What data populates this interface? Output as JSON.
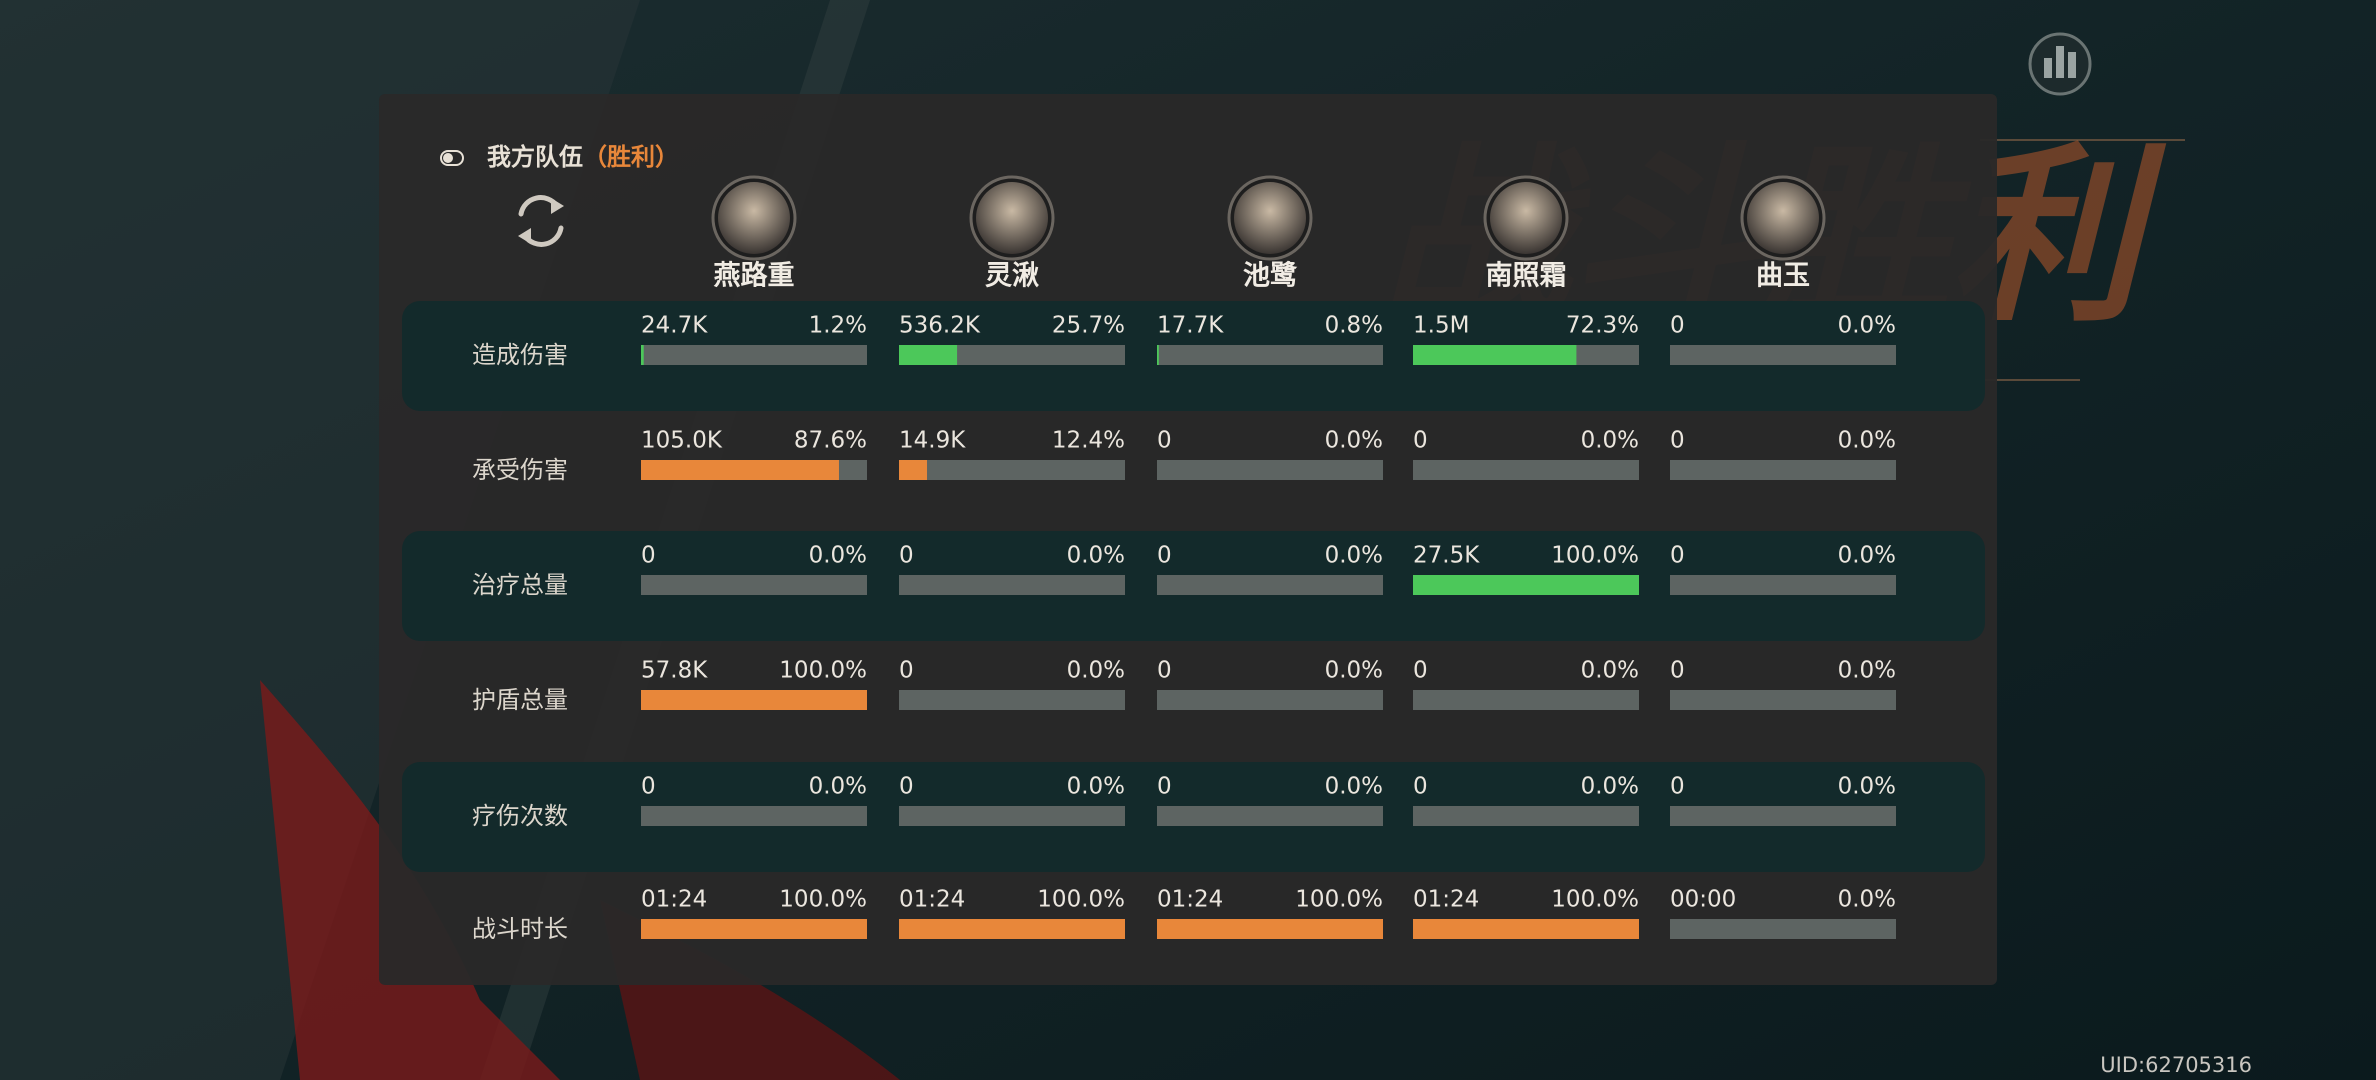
{
  "header": {
    "team": "我方队伍",
    "result": "（胜利）"
  },
  "background_title": "战斗胜利",
  "uid": "UID:62705316",
  "characters": [
    "燕路重",
    "灵湫",
    "池鹭",
    "南照霜",
    "曲玉"
  ],
  "rows": [
    {
      "label": "造成伤害",
      "color": "#4cc85a",
      "cells": [
        {
          "value": "24.7K",
          "percent": 1.2,
          "percent_label": "1.2%"
        },
        {
          "value": "536.2K",
          "percent": 25.7,
          "percent_label": "25.7%"
        },
        {
          "value": "17.7K",
          "percent": 0.8,
          "percent_label": "0.8%"
        },
        {
          "value": "1.5M",
          "percent": 72.3,
          "percent_label": "72.3%"
        },
        {
          "value": "0",
          "percent": 0,
          "percent_label": "0.0%"
        }
      ]
    },
    {
      "label": "承受伤害",
      "color": "#e8873a",
      "cells": [
        {
          "value": "105.0K",
          "percent": 87.6,
          "percent_label": "87.6%"
        },
        {
          "value": "14.9K",
          "percent": 12.4,
          "percent_label": "12.4%"
        },
        {
          "value": "0",
          "percent": 0,
          "percent_label": "0.0%"
        },
        {
          "value": "0",
          "percent": 0,
          "percent_label": "0.0%"
        },
        {
          "value": "0",
          "percent": 0,
          "percent_label": "0.0%"
        }
      ]
    },
    {
      "label": "治疗总量",
      "color": "#4cc85a",
      "cells": [
        {
          "value": "0",
          "percent": 0,
          "percent_label": "0.0%"
        },
        {
          "value": "0",
          "percent": 0,
          "percent_label": "0.0%"
        },
        {
          "value": "0",
          "percent": 0,
          "percent_label": "0.0%"
        },
        {
          "value": "27.5K",
          "percent": 100,
          "percent_label": "100.0%"
        },
        {
          "value": "0",
          "percent": 0,
          "percent_label": "0.0%"
        }
      ]
    },
    {
      "label": "护盾总量",
      "color": "#e8873a",
      "cells": [
        {
          "value": "57.8K",
          "percent": 100,
          "percent_label": "100.0%"
        },
        {
          "value": "0",
          "percent": 0,
          "percent_label": "0.0%"
        },
        {
          "value": "0",
          "percent": 0,
          "percent_label": "0.0%"
        },
        {
          "value": "0",
          "percent": 0,
          "percent_label": "0.0%"
        },
        {
          "value": "0",
          "percent": 0,
          "percent_label": "0.0%"
        }
      ]
    },
    {
      "label": "疗伤次数",
      "color": "#e8873a",
      "cells": [
        {
          "value": "0",
          "percent": 0,
          "percent_label": "0.0%"
        },
        {
          "value": "0",
          "percent": 0,
          "percent_label": "0.0%"
        },
        {
          "value": "0",
          "percent": 0,
          "percent_label": "0.0%"
        },
        {
          "value": "0",
          "percent": 0,
          "percent_label": "0.0%"
        },
        {
          "value": "0",
          "percent": 0,
          "percent_label": "0.0%"
        }
      ]
    },
    {
      "label": "战斗时长",
      "color": "#e8873a",
      "cells": [
        {
          "value": "01:24",
          "percent": 100,
          "percent_label": "100.0%"
        },
        {
          "value": "01:24",
          "percent": 100,
          "percent_label": "100.0%"
        },
        {
          "value": "01:24",
          "percent": 100,
          "percent_label": "100.0%"
        },
        {
          "value": "01:24",
          "percent": 100,
          "percent_label": "100.0%"
        },
        {
          "value": "00:00",
          "percent": 0,
          "percent_label": "0.0%"
        }
      ]
    }
  ]
}
